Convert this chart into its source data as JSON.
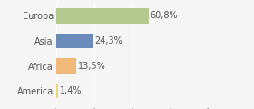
{
  "categories": [
    "Europa",
    "Asia",
    "Africa",
    "America"
  ],
  "values": [
    60.8,
    24.3,
    13.5,
    1.4
  ],
  "labels": [
    "60,8%",
    "24,3%",
    "13,5%",
    "1,4%"
  ],
  "bar_colors": [
    "#b5c98e",
    "#6b8cba",
    "#f0b97a",
    "#e8d87a"
  ],
  "background_color": "#f5f5f5",
  "xlim": [
    0,
    100
  ],
  "label_fontsize": 7.0,
  "tick_fontsize": 7.0,
  "bar_height": 0.6,
  "grid_color": "#ffffff",
  "grid_xticks": [
    0,
    25,
    50,
    75,
    100
  ],
  "text_color": "#555555"
}
